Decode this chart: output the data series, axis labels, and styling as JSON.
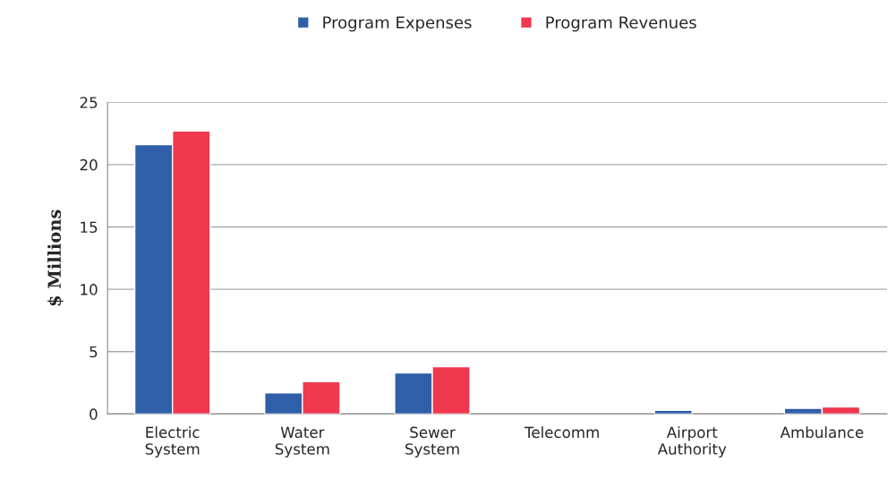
{
  "chart_data": {
    "type": "bar",
    "ylabel": "$ Millions",
    "categories": [
      "Electric\nSystem",
      "Water\nSystem",
      "Sewer\nSystem",
      "Telecomm",
      "Airport\nAuthority",
      "Ambulance"
    ],
    "series": [
      {
        "name": "Program Expenses",
        "color": "#2f5fa8",
        "values": [
          21.6,
          1.7,
          3.3,
          null,
          0.3,
          0.45
        ]
      },
      {
        "name": "Program Revenues",
        "color": "#f0384f",
        "values": [
          22.7,
          2.6,
          3.8,
          null,
          null,
          0.57
        ]
      }
    ],
    "ylim": [
      0,
      25
    ],
    "yticks": [
      0,
      5,
      10,
      15,
      20,
      25
    ],
    "grid": "y",
    "legend": "top"
  }
}
